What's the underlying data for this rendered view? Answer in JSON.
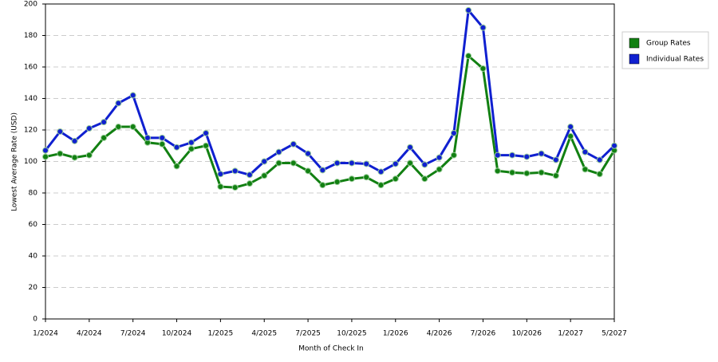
{
  "chart_data": {
    "type": "line",
    "x_label": "Month of Check In",
    "y_label": "Lowest Average Rate (USD)",
    "categories": [
      "1/2024",
      null,
      null,
      "4/2024",
      null,
      null,
      "7/2024",
      null,
      null,
      "10/2024",
      null,
      null,
      "1/2025",
      null,
      null,
      "4/2025",
      null,
      null,
      "7/2025",
      null,
      null,
      "10/2025",
      null,
      null,
      "1/2026",
      null,
      null,
      "4/2026",
      null,
      null,
      "7/2026",
      null,
      null,
      "10/2026",
      null,
      null,
      "1/2027",
      null,
      null,
      "5/2027"
    ],
    "series": [
      {
        "name": "Group Rates",
        "color": "#128012",
        "values": [
          103,
          105,
          102.5,
          104,
          115,
          122,
          122,
          112,
          111,
          97,
          108,
          110,
          84,
          83.5,
          86,
          91,
          99,
          99,
          94,
          85,
          87,
          89,
          90,
          85,
          89,
          99,
          89,
          95,
          104,
          167,
          159,
          94,
          93,
          92.5,
          93,
          91,
          116,
          95,
          92,
          107
        ]
      },
      {
        "name": "Individual Rates",
        "color": "#1020d0",
        "values": [
          107,
          119,
          113,
          121,
          125,
          137,
          142,
          115,
          115,
          109,
          112,
          118,
          92,
          94,
          91.5,
          100,
          106,
          111,
          105,
          94.5,
          99,
          99,
          98.5,
          93.5,
          98.5,
          109,
          98,
          102.5,
          118,
          196,
          185,
          104,
          104,
          103,
          105,
          101,
          122,
          106,
          101,
          110
        ]
      }
    ],
    "ylim": [
      0,
      200
    ],
    "yticks": [
      0,
      20,
      40,
      60,
      80,
      100,
      120,
      140,
      160,
      180,
      200
    ],
    "grid": true,
    "legend": "right"
  }
}
